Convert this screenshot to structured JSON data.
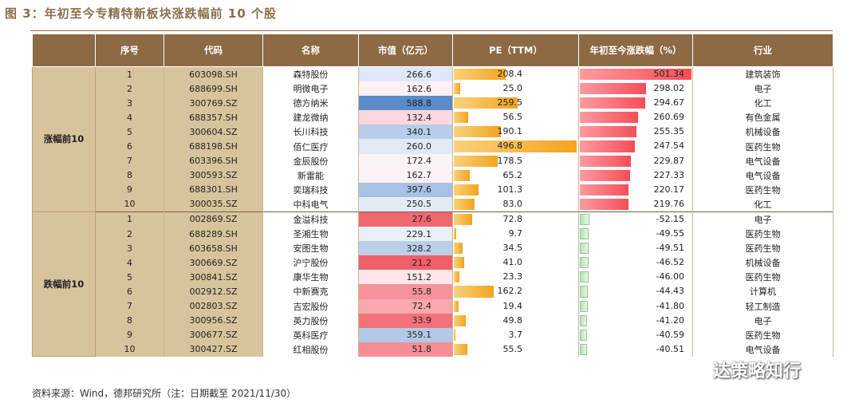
{
  "title": "图 3：年初至今专精特新板块涨跌幅前 10 个股",
  "headers": [
    "序号",
    "代码",
    "名称",
    "市值（亿元）",
    "PE（TTM）",
    "年初至今涨跌幅（%）",
    "行业"
  ],
  "groups": [
    {
      "label": "涨幅前10",
      "rows": [
        {
          "seq": "1",
          "code": "603098.SH",
          "name": "森特股份",
          "mcap": "266.6",
          "pe": "208.4",
          "ret": "501.34",
          "industry": "建筑装饰",
          "mcap_color": "#dfe8f6"
        },
        {
          "seq": "2",
          "code": "688699.SH",
          "name": "明微电子",
          "mcap": "162.6",
          "pe": "25.0",
          "ret": "298.02",
          "industry": "电子",
          "mcap_color": "#fdf1f3"
        },
        {
          "seq": "3",
          "code": "300769.SZ",
          "name": "德方纳米",
          "mcap": "588.8",
          "pe": "259.5",
          "ret": "294.67",
          "industry": "化工",
          "mcap_color": "#5b8bc9"
        },
        {
          "seq": "4",
          "code": "688357.SH",
          "name": "建龙微纳",
          "mcap": "132.4",
          "pe": "56.5",
          "ret": "260.69",
          "industry": "有色金属",
          "mcap_color": "#fad8dc"
        },
        {
          "seq": "5",
          "code": "300604.SZ",
          "name": "长川科技",
          "mcap": "340.1",
          "pe": "190.1",
          "ret": "255.35",
          "industry": "机械设备",
          "mcap_color": "#b8cde9"
        },
        {
          "seq": "6",
          "code": "688198.SH",
          "name": "佰仁医疗",
          "mcap": "260.0",
          "pe": "496.8",
          "ret": "247.54",
          "industry": "医药生物",
          "mcap_color": "#e0e9f6"
        },
        {
          "seq": "7",
          "code": "603396.SH",
          "name": "金辰股份",
          "mcap": "172.4",
          "pe": "178.5",
          "ret": "229.87",
          "industry": "电气设备",
          "mcap_color": "#fbf4f6"
        },
        {
          "seq": "8",
          "code": "300593.SZ",
          "name": "新雷能",
          "mcap": "162.7",
          "pe": "65.2",
          "ret": "227.33",
          "industry": "电气设备",
          "mcap_color": "#fdf1f3"
        },
        {
          "seq": "9",
          "code": "688301.SH",
          "name": "奕瑞科技",
          "mcap": "397.6",
          "pe": "101.3",
          "ret": "220.17",
          "industry": "医药生物",
          "mcap_color": "#a8c2e5"
        },
        {
          "seq": "10",
          "code": "300035.SZ",
          "name": "中科电气",
          "mcap": "250.5",
          "pe": "83.0",
          "ret": "219.76",
          "industry": "化工",
          "mcap_color": "#e3ebf7"
        }
      ]
    },
    {
      "label": "跌幅前10",
      "rows": [
        {
          "seq": "1",
          "code": "002869.SZ",
          "name": "金溢科技",
          "mcap": "27.6",
          "pe": "72.8",
          "ret": "-52.15",
          "industry": "电子",
          "mcap_color": "#f26870"
        },
        {
          "seq": "2",
          "code": "688289.SH",
          "name": "圣湘生物",
          "mcap": "229.1",
          "pe": "9.7",
          "ret": "-49.55",
          "industry": "医药生物",
          "mcap_color": "#eaf0f9"
        },
        {
          "seq": "3",
          "code": "603658.SH",
          "name": "安图生物",
          "mcap": "328.2",
          "pe": "34.5",
          "ret": "-49.51",
          "industry": "医药生物",
          "mcap_color": "#bccfea"
        },
        {
          "seq": "4",
          "code": "300669.SZ",
          "name": "沪宁股份",
          "mcap": "21.2",
          "pe": "41.0",
          "ret": "-46.52",
          "industry": "机械设备",
          "mcap_color": "#f15e67"
        },
        {
          "seq": "5",
          "code": "300841.SZ",
          "name": "康华生物",
          "mcap": "151.2",
          "pe": "23.3",
          "ret": "-46.00",
          "industry": "医药生物",
          "mcap_color": "#fce6e9"
        },
        {
          "seq": "6",
          "code": "002912.SZ",
          "name": "中新赛克",
          "mcap": "55.8",
          "pe": "162.2",
          "ret": "-44.43",
          "industry": "计算机",
          "mcap_color": "#f6939a"
        },
        {
          "seq": "7",
          "code": "002803.SZ",
          "name": "吉宏股份",
          "mcap": "72.4",
          "pe": "19.4",
          "ret": "-41.80",
          "industry": "轻工制造",
          "mcap_color": "#f8a8ae"
        },
        {
          "seq": "8",
          "code": "300956.SZ",
          "name": "英力股份",
          "mcap": "33.9",
          "pe": "49.8",
          "ret": "-41.20",
          "industry": "电子",
          "mcap_color": "#f3727a"
        },
        {
          "seq": "9",
          "code": "300677.SZ",
          "name": "英科医疗",
          "mcap": "359.1",
          "pe": "3.7",
          "ret": "-40.59",
          "industry": "医药生物",
          "mcap_color": "#b3c9e8"
        },
        {
          "seq": "10",
          "code": "300427.SZ",
          "name": "红相股份",
          "mcap": "51.8",
          "pe": "55.5",
          "ret": "-40.51",
          "industry": "电气设备",
          "mcap_color": "#f58e95"
        }
      ]
    }
  ],
  "source": "资料来源：Wind，德邦研究所（注：日期截至 2021/11/30）",
  "watermark": "达策略知行"
}
